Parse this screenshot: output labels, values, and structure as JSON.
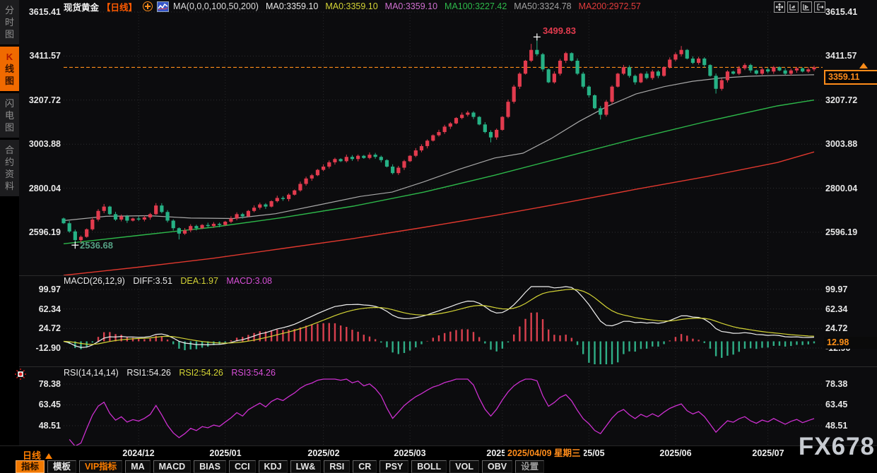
{
  "sidebar": {
    "tabs": [
      {
        "label": "分时图",
        "active": false
      },
      {
        "label": "K线图",
        "active": true
      },
      {
        "label": "闪电图",
        "active": false
      },
      {
        "label": "合约资料",
        "active": false
      }
    ]
  },
  "header": {
    "symbol": "现货黄金",
    "period_tag": "【日线】",
    "ma_settings": "MA(0,0,0,100,50,200)",
    "ma_values": [
      {
        "label": "MA0:3359.10",
        "color": "#e8e8e8"
      },
      {
        "label": "MA0:3359.10",
        "color": "#d4d435"
      },
      {
        "label": "MA0:3359.10",
        "color": "#d06fd0"
      },
      {
        "label": "MA100:3227.42",
        "color": "#2db84a"
      },
      {
        "label": "MA50:3324.78",
        "color": "#a0a0a0"
      },
      {
        "label": "MA200:2972.57",
        "color": "#e23b3b"
      }
    ],
    "window_icons": [
      "move-icon",
      "compress-x-icon",
      "expand-x-icon",
      "exit-right-icon"
    ]
  },
  "price_pane": {
    "axis_values": [
      "3615.41",
      "3411.57",
      "3207.72",
      "3003.88",
      "2800.04",
      "2596.19"
    ],
    "high_marker_label": "3499.83",
    "low_marker_label": "2536.68",
    "last_price_label": "3359.11"
  },
  "macd_pane": {
    "title": "MACD(26,12,9)",
    "diff_label": "DIFF:3.51",
    "dea_label": "DEA:1.97",
    "macd_label": "MACD:3.08",
    "axis_values": [
      "99.97",
      "62.34",
      "24.72",
      "-12.90"
    ],
    "last_value_label": "12.98"
  },
  "rsi_pane": {
    "title": "RSI(14,14,14)",
    "rsi1_label": "RSI1:54.26",
    "rsi2_label": "RSI2:54.26",
    "rsi3_label": "RSI3:54.26",
    "axis_values": [
      "78.38",
      "63.45",
      "48.51"
    ]
  },
  "xaxis": {
    "period_label": "日线",
    "months": [
      "2024/12",
      "2025/01",
      "2025/02",
      "2025/03",
      "2025/04",
      "2025/05",
      "2025/06",
      "2025/07"
    ],
    "tooltip": "2025/04/09 星期三"
  },
  "bottom_toolbar": {
    "buttons": [
      {
        "label": "指标",
        "state": "active"
      },
      {
        "label": "模板",
        "state": "normal"
      },
      {
        "label": "VIP指标",
        "state": "accent"
      },
      {
        "label": "MA",
        "state": "normal"
      },
      {
        "label": "MACD",
        "state": "normal"
      },
      {
        "label": "BIAS",
        "state": "normal"
      },
      {
        "label": "CCI",
        "state": "normal"
      },
      {
        "label": "KDJ",
        "state": "normal"
      },
      {
        "label": "LW&",
        "state": "normal"
      },
      {
        "label": "RSI",
        "state": "normal"
      },
      {
        "label": "CR",
        "state": "normal"
      },
      {
        "label": "PSY",
        "state": "normal"
      },
      {
        "label": "BOLL",
        "state": "normal"
      },
      {
        "label": "VOL",
        "state": "normal"
      },
      {
        "label": "OBV",
        "state": "normal"
      },
      {
        "label": "设置",
        "state": "muted"
      }
    ]
  },
  "watermark": "FX678",
  "colors": {
    "up": "#e23b4e",
    "down": "#26b185",
    "ma50": "#a8a8a8",
    "ma100": "#2db84a",
    "ma200": "#e0382e",
    "accent": "#ff8c1a",
    "diff_line": "#f0f0f0",
    "dea_line": "#d4d435",
    "hist_up": "#d9404e",
    "hist_down": "#2fae86",
    "rsi_line": "#cc2fcf",
    "grid": "#2e2e31"
  },
  "chart_data": {
    "type": "candlestick+macd+rsi",
    "title": "现货黄金 日线 (Spot Gold daily)",
    "first_open": 2660,
    "closes": [
      2638,
      2600,
      2560,
      2575,
      2610,
      2655,
      2695,
      2715,
      2680,
      2655,
      2670,
      2650,
      2660,
      2655,
      2665,
      2680,
      2720,
      2690,
      2650,
      2615,
      2590,
      2605,
      2625,
      2615,
      2630,
      2625,
      2635,
      2630,
      2645,
      2660,
      2680,
      2670,
      2695,
      2710,
      2725,
      2715,
      2740,
      2755,
      2750,
      2770,
      2790,
      2820,
      2845,
      2860,
      2885,
      2900,
      2920,
      2935,
      2925,
      2945,
      2935,
      2950,
      2940,
      2955,
      2945,
      2930,
      2900,
      2870,
      2895,
      2925,
      2950,
      2975,
      2995,
      3020,
      3045,
      3060,
      3085,
      3100,
      3125,
      3140,
      3150,
      3130,
      3095,
      3060,
      3035,
      3070,
      3130,
      3200,
      3270,
      3330,
      3390,
      3440,
      3420,
      3350,
      3290,
      3330,
      3390,
      3425,
      3390,
      3330,
      3270,
      3230,
      3170,
      3140,
      3200,
      3270,
      3330,
      3360,
      3320,
      3290,
      3330,
      3310,
      3340,
      3320,
      3360,
      3395,
      3420,
      3440,
      3400,
      3380,
      3400,
      3370,
      3320,
      3260,
      3300,
      3340,
      3330,
      3355,
      3370,
      3345,
      3330,
      3350,
      3340,
      3360,
      3345,
      3330,
      3345,
      3355,
      3340,
      3350,
      3359.11
    ],
    "wick_overrides": {
      "2": {
        "low": 2536.68
      },
      "7": {
        "high": 2727
      },
      "16": {
        "high": 2731
      },
      "20": {
        "low": 2563
      },
      "74": {
        "low": 3012
      },
      "81": {
        "high": 3468
      },
      "82": {
        "high": 3499.83
      },
      "93": {
        "low": 3118
      },
      "107": {
        "high": 3458
      },
      "113": {
        "low": 3238
      }
    },
    "high_marker": {
      "index": 82,
      "value": 3499.83
    },
    "low_marker": {
      "index": 2,
      "value": 2536.68
    },
    "last_price": 3359.11,
    "price_axis": {
      "values": [
        3615.41,
        3411.57,
        3207.72,
        3003.88,
        2800.04,
        2596.19
      ]
    },
    "macd_axis": {
      "values": [
        99.97,
        62.34,
        24.72,
        -12.9
      ]
    },
    "rsi_axis": {
      "values": [
        78.38,
        63.45,
        48.51
      ]
    },
    "month_tick_indices": [
      13,
      28,
      45,
      60,
      76,
      91,
      106,
      122
    ],
    "ma_lines": {
      "ma50": [
        [
          90,
          2650
        ],
        [
          150,
          2670
        ],
        [
          210,
          2673
        ],
        [
          270,
          2662
        ],
        [
          330,
          2660
        ],
        [
          390,
          2682
        ],
        [
          450,
          2722
        ],
        [
          510,
          2762
        ],
        [
          555,
          2782
        ],
        [
          600,
          2830
        ],
        [
          650,
          2888
        ],
        [
          700,
          2940
        ],
        [
          740,
          2962
        ],
        [
          780,
          3030
        ],
        [
          820,
          3110
        ],
        [
          860,
          3180
        ],
        [
          900,
          3236
        ],
        [
          940,
          3270
        ],
        [
          980,
          3295
        ],
        [
          1020,
          3310
        ],
        [
          1060,
          3318
        ],
        [
          1100,
          3322
        ],
        [
          1152,
          3325
        ]
      ],
      "ma100": [
        [
          90,
          2543
        ],
        [
          200,
          2583
        ],
        [
          300,
          2619
        ],
        [
          400,
          2664
        ],
        [
          500,
          2717
        ],
        [
          600,
          2782
        ],
        [
          700,
          2860
        ],
        [
          800,
          2945
        ],
        [
          900,
          3030
        ],
        [
          1000,
          3109
        ],
        [
          1100,
          3181
        ],
        [
          1152,
          3208
        ]
      ],
      "ma200": [
        [
          90,
          2397
        ],
        [
          200,
          2436
        ],
        [
          300,
          2475
        ],
        [
          400,
          2521
        ],
        [
          500,
          2567
        ],
        [
          600,
          2619
        ],
        [
          700,
          2674
        ],
        [
          800,
          2733
        ],
        [
          900,
          2795
        ],
        [
          1000,
          2854
        ],
        [
          1100,
          2919
        ],
        [
          1152,
          2968
        ]
      ]
    }
  }
}
